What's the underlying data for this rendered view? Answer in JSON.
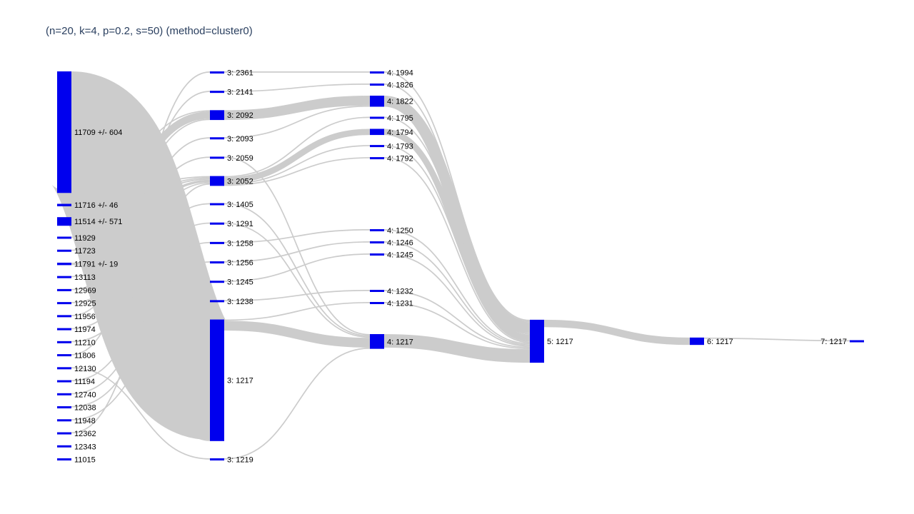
{
  "chart_data": {
    "type": "sankey",
    "title": "(n=20, k=4, p=0.2, s=50) (method=cluster0)",
    "node_color": "#0000ee",
    "link_color": "#cccccc",
    "columns": [
      [
        "11709 +/- 604",
        "11716 +/- 46",
        "11514 +/- 571",
        "11929",
        "11723",
        "11791 +/- 19",
        "13113",
        "12969",
        "12925",
        "11956",
        "11974",
        "11210",
        "11806",
        "12130",
        "11194",
        "12740",
        "12038",
        "11948",
        "12362",
        "12343",
        "11015"
      ],
      [
        "3: 2361",
        "3: 2141",
        "3: 2092",
        "3: 2093",
        "3: 2059",
        "3: 2052",
        "3: 1405",
        "3: 1291",
        "3: 1258",
        "3: 1256",
        "3: 1245",
        "3: 1238",
        "3: 1217",
        "3: 1219"
      ],
      [
        "4: 1994",
        "4: 1826",
        "4: 1822",
        "4: 1795",
        "4: 1794",
        "4: 1793",
        "4: 1792",
        "4: 1250",
        "4: 1246",
        "4: 1245",
        "4: 1232",
        "4: 1231",
        "4: 1217"
      ],
      [
        "5: 1217"
      ],
      [
        "6: 1217"
      ],
      [
        "7: 1217"
      ]
    ],
    "links": [
      {
        "source": "11709 +/- 604",
        "target": "3: 1217",
        "value": 98
      },
      {
        "source": "11709 +/- 604",
        "target": "3: 2092",
        "value": 1
      },
      {
        "source": "11716 +/- 46",
        "target": "3: 1217",
        "value": 1
      },
      {
        "source": "11716 +/- 46",
        "target": "3: 2052",
        "value": 1
      },
      {
        "source": "11514 +/- 571",
        "target": "3: 2092",
        "value": 6
      },
      {
        "source": "11514 +/- 571",
        "target": "3: 2052",
        "value": 1
      },
      {
        "source": "11929",
        "target": "3: 2052",
        "value": 1
      },
      {
        "source": "11723",
        "target": "3: 2092",
        "value": 1
      },
      {
        "source": "11791 +/- 19",
        "target": "3: 2052",
        "value": 2
      },
      {
        "source": "13113",
        "target": "3: 2059",
        "value": 1
      },
      {
        "source": "12969",
        "target": "3: 2093",
        "value": 1
      },
      {
        "source": "12925",
        "target": "3: 2052",
        "value": 1
      },
      {
        "source": "11956",
        "target": "3: 2141",
        "value": 1
      },
      {
        "source": "11974",
        "target": "3: 1405",
        "value": 1
      },
      {
        "source": "11210",
        "target": "3: 1291",
        "value": 1
      },
      {
        "source": "11806",
        "target": "3: 2361",
        "value": 1
      },
      {
        "source": "12130",
        "target": "3: 1219",
        "value": 1
      },
      {
        "source": "11194",
        "target": "3: 1258",
        "value": 1
      },
      {
        "source": "12740",
        "target": "3: 1256",
        "value": 1
      },
      {
        "source": "12038",
        "target": "3: 1245",
        "value": 1
      },
      {
        "source": "11948",
        "target": "3: 1238",
        "value": 1
      },
      {
        "source": "12362",
        "target": "3: 2052",
        "value": 1
      },
      {
        "source": "3: 2361",
        "target": "4: 1994",
        "value": 1
      },
      {
        "source": "3: 2141",
        "target": "4: 1826",
        "value": 1
      },
      {
        "source": "3: 2092",
        "target": "4: 1822",
        "value": 8
      },
      {
        "source": "3: 2093",
        "target": "4: 1822",
        "value": 1
      },
      {
        "source": "3: 2059",
        "target": "4: 1217",
        "value": 1
      },
      {
        "source": "3: 2052",
        "target": "4: 1795",
        "value": 1
      },
      {
        "source": "3: 2052",
        "target": "4: 1794",
        "value": 5
      },
      {
        "source": "3: 2052",
        "target": "4: 1793",
        "value": 1
      },
      {
        "source": "3: 2052",
        "target": "4: 1792",
        "value": 1
      },
      {
        "source": "3: 1405",
        "target": "4: 1217",
        "value": 1
      },
      {
        "source": "3: 1291",
        "target": "4: 1217",
        "value": 1
      },
      {
        "source": "3: 1258",
        "target": "4: 1250",
        "value": 1
      },
      {
        "source": "3: 1256",
        "target": "4: 1246",
        "value": 1
      },
      {
        "source": "3: 1245",
        "target": "4: 1245",
        "value": 1
      },
      {
        "source": "3: 1238",
        "target": "4: 1232",
        "value": 1
      },
      {
        "source": "3: 1217",
        "target": "4: 1231",
        "value": 1
      },
      {
        "source": "3: 1217",
        "target": "4: 1217",
        "value": 8
      },
      {
        "source": "3: 1219",
        "target": "4: 1217",
        "value": 1
      },
      {
        "source": "4: 1994",
        "target": "5: 1217",
        "value": 1
      },
      {
        "source": "4: 1826",
        "target": "5: 1217",
        "value": 1
      },
      {
        "source": "4: 1822",
        "target": "5: 1217",
        "value": 9
      },
      {
        "source": "4: 1795",
        "target": "5: 1217",
        "value": 1
      },
      {
        "source": "4: 1794",
        "target": "5: 1217",
        "value": 5
      },
      {
        "source": "4: 1793",
        "target": "5: 1217",
        "value": 1
      },
      {
        "source": "4: 1792",
        "target": "5: 1217",
        "value": 1
      },
      {
        "source": "4: 1250",
        "target": "5: 1217",
        "value": 1
      },
      {
        "source": "4: 1246",
        "target": "5: 1217",
        "value": 1
      },
      {
        "source": "4: 1245",
        "target": "5: 1217",
        "value": 1
      },
      {
        "source": "4: 1232",
        "target": "5: 1217",
        "value": 1
      },
      {
        "source": "4: 1231",
        "target": "5: 1217",
        "value": 1
      },
      {
        "source": "4: 1217",
        "target": "5: 1217",
        "value": 11
      },
      {
        "source": "5: 1217",
        "target": "6: 1217",
        "value": 6
      },
      {
        "source": "6: 1217",
        "target": "7: 1217",
        "value": 1
      }
    ]
  }
}
